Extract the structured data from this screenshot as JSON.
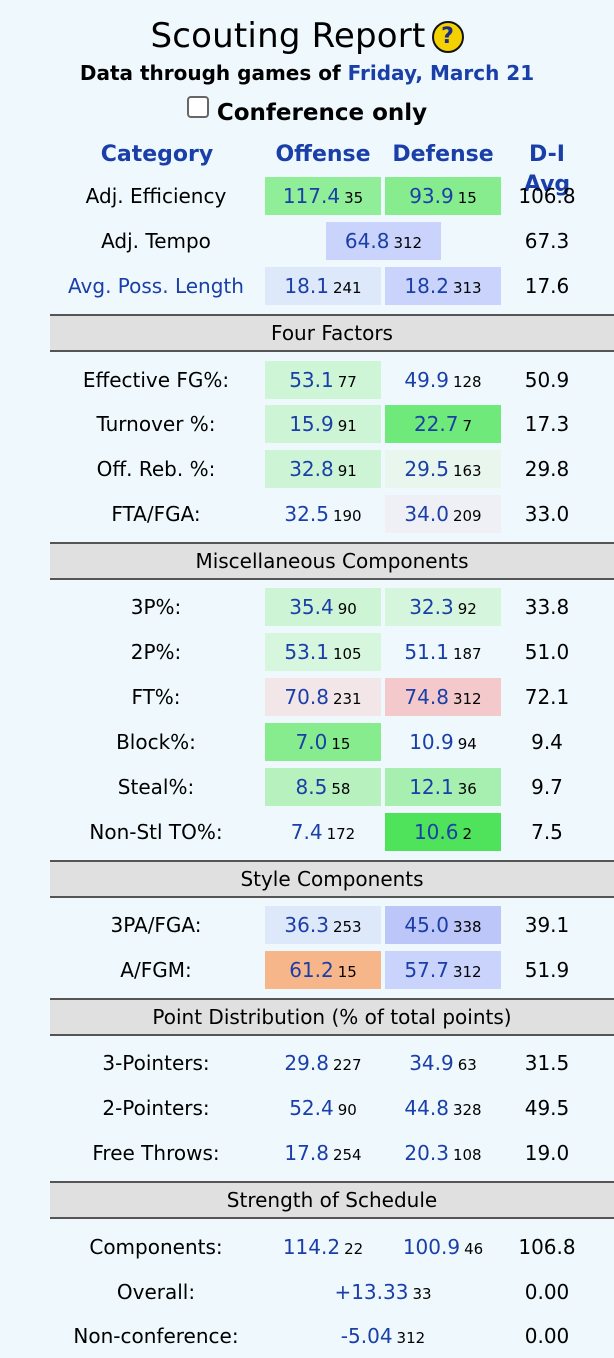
{
  "header": {
    "title": "Scouting Report",
    "help_icon": "?",
    "subtitle_prefix": "Data through games of",
    "date_link": "Friday, March 21",
    "conference_only_label": "Conference only"
  },
  "columns": {
    "category": "Category",
    "offense": "Offense",
    "defense": "Defense",
    "avg": "D-I Avg"
  },
  "top_rows": [
    {
      "label": "Adj. Efficiency",
      "off_val": "117.4",
      "off_rank": "35",
      "def_val": "93.9",
      "def_rank": "15",
      "avg": "106.8"
    },
    {
      "label": "Adj. Tempo",
      "val": "64.8",
      "rank": "312",
      "avg": "67.3"
    },
    {
      "label": "Avg. Poss. Length",
      "off_val": "18.1",
      "off_rank": "241",
      "def_val": "18.2",
      "def_rank": "313",
      "avg": "17.6"
    }
  ],
  "four_factors": {
    "title": "Four Factors",
    "rows": [
      {
        "label": "Effective FG%:",
        "off_val": "53.1",
        "off_rank": "77",
        "def_val": "49.9",
        "def_rank": "128",
        "avg": "50.9"
      },
      {
        "label": "Turnover %:",
        "off_val": "15.9",
        "off_rank": "91",
        "def_val": "22.7",
        "def_rank": "7",
        "avg": "17.3"
      },
      {
        "label": "Off. Reb. %:",
        "off_val": "32.8",
        "off_rank": "91",
        "def_val": "29.5",
        "def_rank": "163",
        "avg": "29.8"
      },
      {
        "label": "FTA/FGA:",
        "off_val": "32.5",
        "off_rank": "190",
        "def_val": "34.0",
        "def_rank": "209",
        "avg": "33.0"
      }
    ]
  },
  "misc": {
    "title": "Miscellaneous Components",
    "rows": [
      {
        "label": "3P%:",
        "off_val": "35.4",
        "off_rank": "90",
        "def_val": "32.3",
        "def_rank": "92",
        "avg": "33.8"
      },
      {
        "label": "2P%:",
        "off_val": "53.1",
        "off_rank": "105",
        "def_val": "51.1",
        "def_rank": "187",
        "avg": "51.0"
      },
      {
        "label": "FT%:",
        "off_val": "70.8",
        "off_rank": "231",
        "def_val": "74.8",
        "def_rank": "312",
        "avg": "72.1"
      },
      {
        "label": "Block%:",
        "off_val": "7.0",
        "off_rank": "15",
        "def_val": "10.9",
        "def_rank": "94",
        "avg": "9.4"
      },
      {
        "label": "Steal%:",
        "off_val": "8.5",
        "off_rank": "58",
        "def_val": "12.1",
        "def_rank": "36",
        "avg": "9.7"
      },
      {
        "label": "Non-Stl TO%:",
        "off_val": "7.4",
        "off_rank": "172",
        "def_val": "10.6",
        "def_rank": "2",
        "avg": "7.5"
      }
    ]
  },
  "style": {
    "title": "Style Components",
    "rows": [
      {
        "label": "3PA/FGA:",
        "off_val": "36.3",
        "off_rank": "253",
        "def_val": "45.0",
        "def_rank": "338",
        "avg": "39.1"
      },
      {
        "label": "A/FGM:",
        "off_val": "61.2",
        "off_rank": "15",
        "def_val": "57.7",
        "def_rank": "312",
        "avg": "51.9"
      }
    ]
  },
  "points": {
    "title": "Point Distribution (% of total points)",
    "rows": [
      {
        "label": "3-Pointers:",
        "off_val": "29.8",
        "off_rank": "227",
        "def_val": "34.9",
        "def_rank": "63",
        "avg": "31.5"
      },
      {
        "label": "2-Pointers:",
        "off_val": "52.4",
        "off_rank": "90",
        "def_val": "44.8",
        "def_rank": "328",
        "avg": "49.5"
      },
      {
        "label": "Free Throws:",
        "off_val": "17.8",
        "off_rank": "254",
        "def_val": "20.3",
        "def_rank": "108",
        "avg": "19.0"
      }
    ]
  },
  "sos": {
    "title": "Strength of Schedule",
    "components": {
      "label": "Components:",
      "off_val": "114.2",
      "off_rank": "22",
      "def_val": "100.9",
      "def_rank": "46",
      "avg": "106.8"
    },
    "overall": {
      "label": "Overall:",
      "val": "+13.33",
      "rank": "33",
      "avg": "0.00"
    },
    "nonconf": {
      "label": "Non-conference:",
      "val": "-5.04",
      "rank": "312",
      "avg": "0.00"
    }
  },
  "colors": {
    "link": "#1a3fa8",
    "section_bg": "#e0e0e0",
    "page_bg": "#eef8fd"
  }
}
